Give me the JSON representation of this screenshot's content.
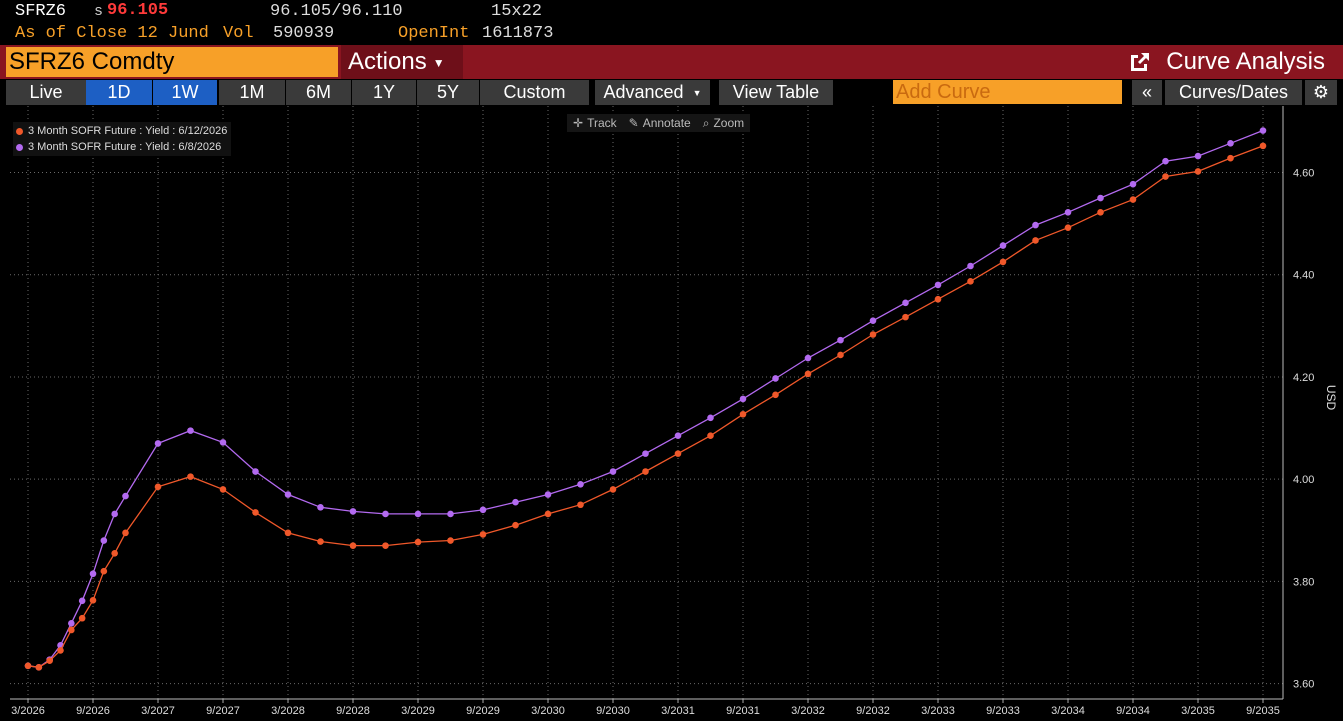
{
  "quote": {
    "ticker": "SFRZ6",
    "s_flag": "s",
    "last": "96.105",
    "bid_ask": "96.105/96.110",
    "size": "15x22",
    "as_of": "As of Close 12 Jund",
    "vol_label": "Vol",
    "volume": "590939",
    "openint_label": "OpenInt",
    "openint": "1611873"
  },
  "titlebar": {
    "security": "SFRZ6 Comdty",
    "actions": "Actions",
    "function_title": "Curve Analysis"
  },
  "toolbar": {
    "buttons": [
      "Live",
      "1D",
      "1W",
      "1M",
      "6M",
      "1Y",
      "5Y",
      "Custom"
    ],
    "active": [
      "1D",
      "1W"
    ],
    "advanced": "Advanced",
    "view_table": "View Table",
    "add_curve_placeholder": "Add Curve",
    "collapse": "«",
    "curves_dates": "Curves/Dates"
  },
  "chart_tools": {
    "track": "Track",
    "annotate": "Annotate",
    "zoom": "Zoom"
  },
  "colors": {
    "series_recent": "#f0582a",
    "series_prior": "#b36af0",
    "accent_orange": "#f7a028",
    "title_red": "#8a1520",
    "active_blue": "#1d5fc4"
  },
  "chart_data": {
    "type": "line",
    "xlabel": "",
    "ylabel": "USD",
    "ylim": [
      3.57,
      4.73
    ],
    "yticks": [
      3.6,
      3.8,
      4.0,
      4.2,
      4.4,
      4.6
    ],
    "ytick_labels": [
      "3.60",
      "3.80",
      "4.00",
      "4.20",
      "4.40",
      "4.60"
    ],
    "xlim": [
      "2026-03",
      "2035-09"
    ],
    "xtick_labels": [
      "3/2026",
      "9/2026",
      "3/2027",
      "9/2027",
      "3/2028",
      "9/2028",
      "3/2029",
      "9/2029",
      "3/2030",
      "9/2030",
      "3/2031",
      "9/2031",
      "3/2032",
      "9/2032",
      "3/2033",
      "9/2033",
      "3/2034",
      "9/2034",
      "3/2035",
      "9/2035"
    ],
    "legend_position": "top-left",
    "grid": true,
    "series": [
      {
        "name": "3 Month SOFR Future : Yield : 6/12/2026",
        "color": "#f0582a",
        "x": [
          "2026-03",
          "2026-04",
          "2026-05",
          "2026-06",
          "2026-07",
          "2026-08",
          "2026-09",
          "2026-10",
          "2026-11",
          "2026-12",
          "2027-03",
          "2027-06",
          "2027-09",
          "2027-12",
          "2028-03",
          "2028-06",
          "2028-09",
          "2028-12",
          "2029-03",
          "2029-06",
          "2029-09",
          "2029-12",
          "2030-03",
          "2030-06",
          "2030-09",
          "2030-12",
          "2031-03",
          "2031-06",
          "2031-09",
          "2031-12",
          "2032-03",
          "2032-06",
          "2032-09",
          "2032-12",
          "2033-03",
          "2033-06",
          "2033-09",
          "2033-12",
          "2034-03",
          "2034-06",
          "2034-09",
          "2034-12",
          "2035-03",
          "2035-06",
          "2035-09"
        ],
        "y": [
          3.635,
          3.632,
          3.645,
          3.665,
          3.705,
          3.728,
          3.763,
          3.82,
          3.855,
          3.895,
          3.985,
          4.005,
          3.98,
          3.935,
          3.895,
          3.878,
          3.87,
          3.87,
          3.877,
          3.88,
          3.892,
          3.91,
          3.932,
          3.95,
          3.98,
          4.015,
          4.05,
          4.085,
          4.127,
          4.165,
          4.206,
          4.243,
          4.283,
          4.317,
          4.352,
          4.387,
          4.425,
          4.467,
          4.492,
          4.522,
          4.547,
          4.592,
          4.602,
          4.628,
          4.652
        ]
      },
      {
        "name": "3 Month SOFR Future : Yield : 6/8/2026",
        "color": "#b36af0",
        "x": [
          "2026-03",
          "2026-04",
          "2026-05",
          "2026-06",
          "2026-07",
          "2026-08",
          "2026-09",
          "2026-10",
          "2026-11",
          "2026-12",
          "2027-03",
          "2027-06",
          "2027-09",
          "2027-12",
          "2028-03",
          "2028-06",
          "2028-09",
          "2028-12",
          "2029-03",
          "2029-06",
          "2029-09",
          "2029-12",
          "2030-03",
          "2030-06",
          "2030-09",
          "2030-12",
          "2031-03",
          "2031-06",
          "2031-09",
          "2031-12",
          "2032-03",
          "2032-06",
          "2032-09",
          "2032-12",
          "2033-03",
          "2033-06",
          "2033-09",
          "2033-12",
          "2034-03",
          "2034-06",
          "2034-09",
          "2034-12",
          "2035-03",
          "2035-06",
          "2035-09"
        ],
        "y": [
          3.635,
          3.632,
          3.647,
          3.675,
          3.718,
          3.762,
          3.815,
          3.88,
          3.932,
          3.967,
          4.07,
          4.095,
          4.072,
          4.015,
          3.97,
          3.945,
          3.937,
          3.932,
          3.932,
          3.932,
          3.94,
          3.955,
          3.97,
          3.99,
          4.015,
          4.05,
          4.085,
          4.12,
          4.157,
          4.197,
          4.237,
          4.272,
          4.31,
          4.345,
          4.38,
          4.417,
          4.457,
          4.497,
          4.522,
          4.55,
          4.577,
          4.622,
          4.632,
          4.657,
          4.682
        ]
      }
    ]
  }
}
